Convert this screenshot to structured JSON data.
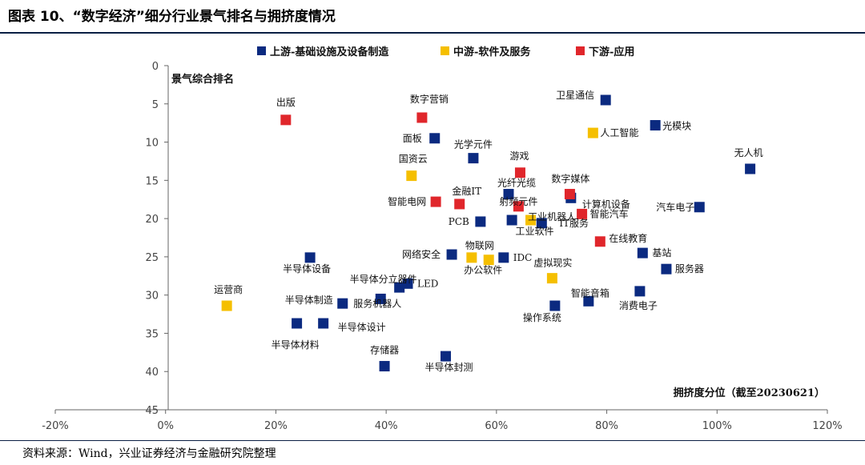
{
  "page": {
    "title": "图表 10、“数字经济”细分行业景气排名与拥挤度情况",
    "source": "资料来源：Wind，兴业证券经济与金融研究院整理"
  },
  "colors": {
    "upstream": "#0b2a80",
    "midstream": "#f5bf00",
    "downstream": "#e0262b",
    "axis": "#666666",
    "rule": "#0a1f44"
  },
  "chart_data": {
    "type": "scatter",
    "xlabel": "拥挤度分位（截至20230621）",
    "ylabel": "景气综合排名",
    "xlim": [
      -20,
      120
    ],
    "ylim": [
      0,
      45
    ],
    "y_inverted": true,
    "x_ticks": [
      "-20%",
      "0%",
      "20%",
      "40%",
      "60%",
      "80%",
      "100%",
      "120%"
    ],
    "x_tick_values": [
      -20,
      0,
      20,
      40,
      60,
      80,
      100,
      120
    ],
    "y_ticks": [
      "0",
      "5",
      "10",
      "15",
      "20",
      "25",
      "30",
      "35",
      "40",
      "45"
    ],
    "y_tick_values": [
      0,
      5,
      10,
      15,
      20,
      25,
      30,
      35,
      40,
      45
    ],
    "grid": false,
    "legend_position": "top-center",
    "series": [
      {
        "name": "上游-基础设施及设备制造",
        "color_key": "upstream",
        "points": [
          {
            "label": "卫星通信",
            "x": 79.8,
            "y": 4.5
          },
          {
            "label": "光模块",
            "x": 88.8,
            "y": 7.8
          },
          {
            "label": "无人机",
            "x": 106,
            "y": 13.5
          },
          {
            "label": "面板",
            "x": 48.8,
            "y": 9.5
          },
          {
            "label": "光学元件",
            "x": 55.8,
            "y": 12.1
          },
          {
            "label": "光纤光缆",
            "x": 62.2,
            "y": 16.8
          },
          {
            "label": "计算机设备",
            "x": 73.5,
            "y": 17.3
          },
          {
            "label": "汽车电子",
            "x": 96.8,
            "y": 18.5
          },
          {
            "label": "PCB",
            "x": 57.1,
            "y": 20.4
          },
          {
            "label": "工业机器人",
            "x": 62.8,
            "y": 20.2
          },
          {
            "label": "IT服务",
            "x": 68.2,
            "y": 20.6
          },
          {
            "label": "IDC",
            "x": 61.3,
            "y": 25.1
          },
          {
            "label": "网络安全",
            "x": 51.9,
            "y": 24.7
          },
          {
            "label": "基站",
            "x": 86.5,
            "y": 24.5
          },
          {
            "label": "服务器",
            "x": 90.8,
            "y": 26.6
          },
          {
            "label": "半导体设备",
            "x": 26.2,
            "y": 25.1
          },
          {
            "label": "半导体分立器件",
            "x": 42.4,
            "y": 29.0
          },
          {
            "label": "LED",
            "x": 43.9,
            "y": 28.5
          },
          {
            "label": "半导体制造",
            "x": 32.1,
            "y": 31.1
          },
          {
            "label": "服务机器人",
            "x": 39.0,
            "y": 30.5
          },
          {
            "label": "智能音箱",
            "x": 76.7,
            "y": 30.8
          },
          {
            "label": "消费电子",
            "x": 86.0,
            "y": 29.5
          },
          {
            "label": "操作系统",
            "x": 70.6,
            "y": 31.4
          },
          {
            "label": "半导体材料",
            "x": 23.8,
            "y": 33.7
          },
          {
            "label": "半导体设计",
            "x": 28.6,
            "y": 33.7
          },
          {
            "label": "存储器",
            "x": 39.7,
            "y": 39.3
          },
          {
            "label": "半导体封测",
            "x": 50.8,
            "y": 38.0
          }
        ]
      },
      {
        "name": "中游-软件及服务",
        "color_key": "midstream",
        "points": [
          {
            "label": "人工智能",
            "x": 77.5,
            "y": 8.8
          },
          {
            "label": "国资云",
            "x": 44.6,
            "y": 14.4
          },
          {
            "label": "工业软件",
            "x": 66.2,
            "y": 20.2
          },
          {
            "label": "物联网",
            "x": 55.5,
            "y": 25.1
          },
          {
            "label": "办公软件",
            "x": 58.6,
            "y": 25.4
          },
          {
            "label": "虚拟现实",
            "x": 70.1,
            "y": 27.8
          },
          {
            "label": "运营商",
            "x": 11.1,
            "y": 31.4
          }
        ]
      },
      {
        "name": "下游-应用",
        "color_key": "downstream",
        "points": [
          {
            "label": "出版",
            "x": 21.8,
            "y": 7.1
          },
          {
            "label": "数字营销",
            "x": 46.5,
            "y": 6.8
          },
          {
            "label": "游戏",
            "x": 64.3,
            "y": 14.0
          },
          {
            "label": "金融IT",
            "x": 53.3,
            "y": 18.1
          },
          {
            "label": "智能电网",
            "x": 49.0,
            "y": 17.8
          },
          {
            "label": "数字媒体",
            "x": 73.3,
            "y": 16.8
          },
          {
            "label": "射频元件",
            "x": 64.0,
            "y": 18.4
          },
          {
            "label": "智能汽车",
            "x": 75.5,
            "y": 19.4
          },
          {
            "label": "在线教育",
            "x": 78.8,
            "y": 23.0
          }
        ]
      }
    ]
  }
}
